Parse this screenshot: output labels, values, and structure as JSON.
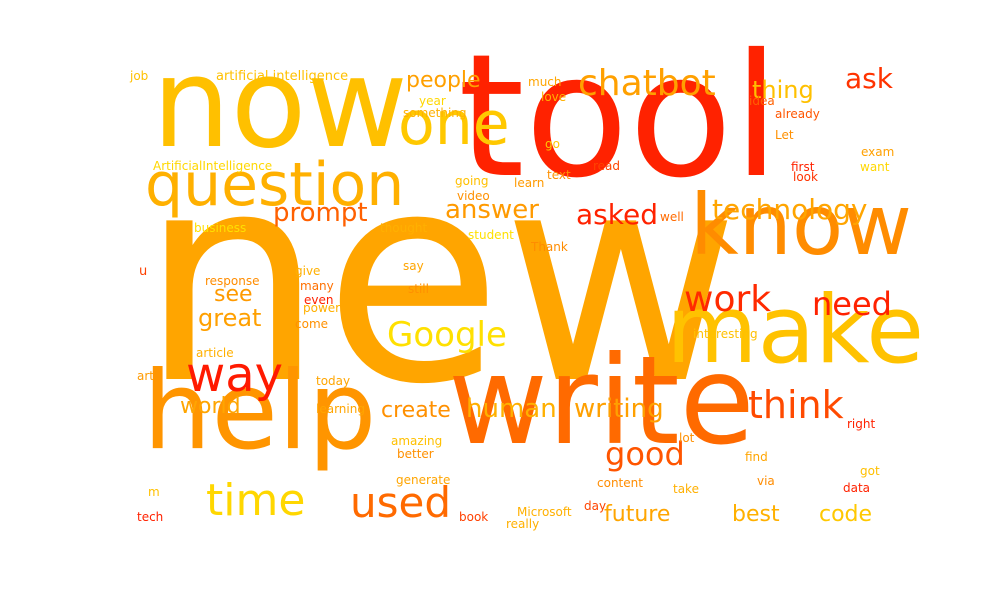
{
  "words": [
    {
      "text": "new",
      "color": "#FFA500"
    },
    {
      "text": "tool",
      "color": "#FF2200"
    },
    {
      "text": "now",
      "color": "#FFC000"
    },
    {
      "text": "write",
      "color": "#FF6A00"
    },
    {
      "text": "help",
      "color": "#FF9500"
    },
    {
      "text": "make",
      "color": "#FFC200"
    },
    {
      "text": "know",
      "color": "#FF8C00"
    },
    {
      "text": "question",
      "color": "#FFB000"
    },
    {
      "text": "one",
      "color": "#FFC800"
    },
    {
      "text": "chatbot",
      "color": "#FFA000"
    },
    {
      "text": "time",
      "color": "#FFD700"
    },
    {
      "text": "used",
      "color": "#FF6A00"
    },
    {
      "text": "way",
      "color": "#FF1A00"
    },
    {
      "text": "work",
      "color": "#FF2A00"
    },
    {
      "text": "Google",
      "color": "#FFE000"
    },
    {
      "text": "think",
      "color": "#FF4A00"
    },
    {
      "text": "good",
      "color": "#FF5500"
    },
    {
      "text": "technology",
      "color": "#FFA500"
    },
    {
      "text": "need",
      "color": "#FF2200"
    },
    {
      "text": "ask",
      "color": "#FF3300"
    },
    {
      "text": "asked",
      "color": "#FF2200"
    },
    {
      "text": "answer",
      "color": "#FF9A00"
    },
    {
      "text": "prompt",
      "color": "#FF6000"
    },
    {
      "text": "people",
      "color": "#FFA000"
    },
    {
      "text": "thing",
      "color": "#FFC000"
    },
    {
      "text": "human",
      "color": "#FFB000"
    },
    {
      "text": "writing",
      "color": "#FFA000"
    },
    {
      "text": "create",
      "color": "#FF9000"
    },
    {
      "text": "world",
      "color": "#FFA500"
    },
    {
      "text": "see",
      "color": "#FF9A00"
    },
    {
      "text": "great",
      "color": "#FFA000"
    },
    {
      "text": "future",
      "color": "#FFA500"
    },
    {
      "text": "best",
      "color": "#FFB000"
    },
    {
      "text": "code",
      "color": "#FFC800"
    },
    {
      "text": "artificial intelligence",
      "color": "#FFC000"
    },
    {
      "text": "job",
      "color": "#FFC000"
    },
    {
      "text": "ArtificialIntelligence",
      "color": "#FFD700"
    },
    {
      "text": "business",
      "color": "#FFE000"
    },
    {
      "text": "u",
      "color": "#FF4000"
    },
    {
      "text": "response",
      "color": "#FF8C00"
    },
    {
      "text": "article",
      "color": "#FFB000"
    },
    {
      "text": "art",
      "color": "#FF9A00"
    },
    {
      "text": "tech",
      "color": "#FF2200"
    },
    {
      "text": "m",
      "color": "#FFC000"
    },
    {
      "text": "much",
      "color": "#FFA500"
    },
    {
      "text": "love",
      "color": "#FFB000"
    },
    {
      "text": "year",
      "color": "#FFD700"
    },
    {
      "text": "something",
      "color": "#FFB000"
    },
    {
      "text": "go",
      "color": "#FFC800"
    },
    {
      "text": "going",
      "color": "#FFC000"
    },
    {
      "text": "video",
      "color": "#FF9000"
    },
    {
      "text": "learn",
      "color": "#FF9A00"
    },
    {
      "text": "text",
      "color": "#FF9000"
    },
    {
      "text": "read",
      "color": "#FF4400"
    },
    {
      "text": "idea",
      "color": "#FF6000"
    },
    {
      "text": "already",
      "color": "#FF5500"
    },
    {
      "text": "Let",
      "color": "#FF9000"
    },
    {
      "text": "first",
      "color": "#FF2200"
    },
    {
      "text": "look",
      "color": "#FF3300"
    },
    {
      "text": "exam",
      "color": "#FFA000"
    },
    {
      "text": "want",
      "color": "#FFD700"
    },
    {
      "text": "thought",
      "color": "#FFB000"
    },
    {
      "text": "student",
      "color": "#FFE000"
    },
    {
      "text": "well",
      "color": "#FF6A00"
    },
    {
      "text": "Thank",
      "color": "#FF8C00"
    },
    {
      "text": "say",
      "color": "#FFA500"
    },
    {
      "text": "give",
      "color": "#FFB000"
    },
    {
      "text": "many",
      "color": "#FF7000"
    },
    {
      "text": "still",
      "color": "#FF9000"
    },
    {
      "text": "even",
      "color": "#FF2200"
    },
    {
      "text": "power",
      "color": "#FFB000"
    },
    {
      "text": "come",
      "color": "#FF9000"
    },
    {
      "text": "interesting",
      "color": "#FFC000"
    },
    {
      "text": "today",
      "color": "#FFA500"
    },
    {
      "text": "learning",
      "color": "#FFA500"
    },
    {
      "text": "amazing",
      "color": "#FFC000"
    },
    {
      "text": "better",
      "color": "#FF9000"
    },
    {
      "text": "generate",
      "color": "#FFA500"
    },
    {
      "text": "content",
      "color": "#FF8C00"
    },
    {
      "text": "Microsoft",
      "color": "#FFB000"
    },
    {
      "text": "really",
      "color": "#FFB000"
    },
    {
      "text": "book",
      "color": "#FF4000"
    },
    {
      "text": "day",
      "color": "#FF4400"
    },
    {
      "text": "lot",
      "color": "#FF9000"
    },
    {
      "text": "right",
      "color": "#FF2200"
    },
    {
      "text": "find",
      "color": "#FFA500"
    },
    {
      "text": "got",
      "color": "#FFC000"
    },
    {
      "text": "take",
      "color": "#FFB000"
    },
    {
      "text": "via",
      "color": "#FF8C00"
    },
    {
      "text": "data",
      "color": "#FF2200"
    }
  ]
}
